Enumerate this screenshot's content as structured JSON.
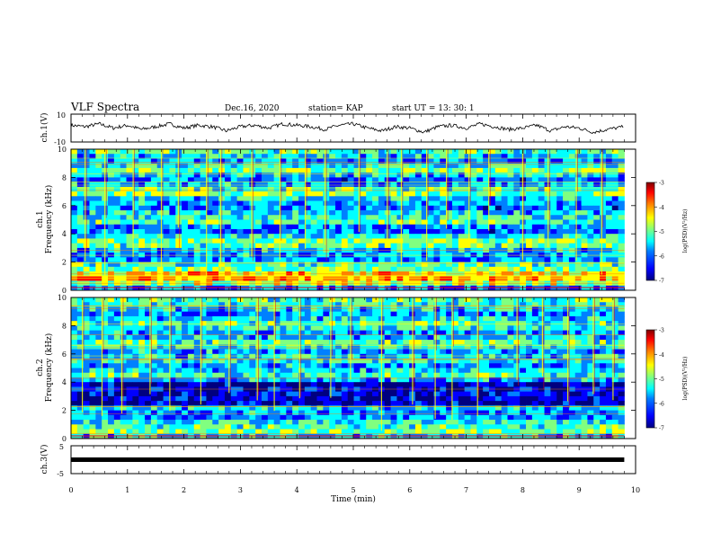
{
  "header": {
    "title": "VLF Spectra",
    "date": "Dec.16, 2020",
    "station": "station= KAP",
    "start": "start  UT =   13: 30: 1"
  },
  "colors": {
    "trace": "#000000",
    "colormap": [
      "#00007f",
      "#0000ff",
      "#0080ff",
      "#00ffff",
      "#80ff80",
      "#ffff00",
      "#ff8000",
      "#ff0000",
      "#7f0000"
    ]
  },
  "chart_data": [
    {
      "type": "line",
      "ylabel": "ch.1(V)",
      "ylim": [
        -10,
        10
      ],
      "ytick_labels": [
        "10",
        "-10"
      ],
      "xlim": [
        0,
        10
      ],
      "x": [
        0,
        0.25,
        0.5,
        0.75,
        1,
        1.25,
        1.5,
        1.75,
        2,
        2.25,
        2.5,
        2.75,
        3,
        3.25,
        3.5,
        3.75,
        4,
        4.25,
        4.5,
        4.75,
        5,
        5.25,
        5.5,
        5.75,
        6,
        6.25,
        6.5,
        6.75,
        7,
        7.25,
        7.5,
        7.75,
        8,
        8.25,
        8.5,
        8.75,
        9,
        9.25,
        9.5,
        9.8
      ],
      "y": [
        2,
        1,
        3,
        0,
        2,
        -1,
        1,
        3,
        0,
        2,
        1,
        -2,
        1,
        2,
        0,
        3,
        2,
        1,
        -1,
        2,
        3,
        0,
        -2,
        1,
        0,
        -3,
        1,
        2,
        0,
        3,
        1,
        -1,
        0,
        2,
        -2,
        1,
        0,
        -3,
        -1,
        1
      ]
    },
    {
      "type": "heatmap",
      "ylabel": "ch.1",
      "ylabel2": "Frequency (kHz)",
      "ylim": [
        0,
        10
      ],
      "ytick_labels": [
        "0",
        "2",
        "4",
        "6",
        "8",
        "10"
      ],
      "xlim": [
        0,
        10
      ],
      "zlim": [
        -7,
        -3
      ],
      "colorbar_label": "log(PSD)(V²/Hz)",
      "colorbar_ticks": [
        "-3",
        "-4",
        "-5",
        "-6",
        "-7"
      ],
      "band_levels": [
        0.3,
        0.55,
        0.7,
        0.65,
        0.5,
        0.45,
        0.3,
        0.3,
        0.35,
        0.45,
        0.5,
        0.4,
        0.25,
        0.3,
        0.45,
        0.4,
        0.35,
        0.25,
        0.3,
        0.35,
        0.5,
        0.45,
        0.3,
        0.25,
        0.35,
        0.5,
        0.4,
        0.3,
        0.35,
        0.45
      ],
      "impulse_times": [
        0.25,
        0.6,
        1.1,
        1.6,
        1.9,
        2.4,
        2.65,
        3.2,
        3.7,
        4.15,
        4.5,
        5.1,
        5.6,
        5.85,
        6.3,
        6.65,
        7.05,
        7.4,
        8.0,
        8.45,
        8.95,
        9.4
      ]
    },
    {
      "type": "heatmap",
      "ylabel": "ch.2",
      "ylabel2": "Frequency (kHz)",
      "ylim": [
        0,
        10
      ],
      "ytick_labels": [
        "0",
        "2",
        "4",
        "6",
        "8",
        "10"
      ],
      "xlim": [
        0,
        10
      ],
      "zlim": [
        -7,
        -3
      ],
      "colorbar_label": "log(PSD)(V²/Hz)",
      "colorbar_ticks": [
        "-3",
        "-4",
        "-5",
        "-6",
        "-7"
      ],
      "band_levels": [
        0.35,
        0.5,
        0.45,
        0.4,
        0.3,
        0.3,
        0.35,
        0.1,
        0.1,
        0.12,
        0.15,
        0.1,
        0.3,
        0.45,
        0.35,
        0.3,
        0.4,
        0.35,
        0.3,
        0.4,
        0.45,
        0.35,
        0.3,
        0.4,
        0.45,
        0.35,
        0.3,
        0.35,
        0.4,
        0.45
      ],
      "impulse_times": [
        0.2,
        0.55,
        0.9,
        1.4,
        1.75,
        2.3,
        2.8,
        3.3,
        3.6,
        4.05,
        4.6,
        4.95,
        5.5,
        6.05,
        6.45,
        6.75,
        7.2,
        7.9,
        8.35,
        8.8,
        9.25,
        9.6
      ]
    },
    {
      "type": "line",
      "ylabel": "ch.3(V)",
      "ylim": [
        -5,
        5
      ],
      "ytick_labels": [
        "5",
        "-5"
      ],
      "xlim": [
        0,
        10
      ],
      "xlabel": "Time (min)",
      "xtick_labels": [
        "0",
        "1",
        "2",
        "3",
        "4",
        "5",
        "6",
        "7",
        "8",
        "9",
        "10"
      ],
      "x": [
        0,
        9.8
      ],
      "y": [
        0,
        0
      ]
    }
  ]
}
